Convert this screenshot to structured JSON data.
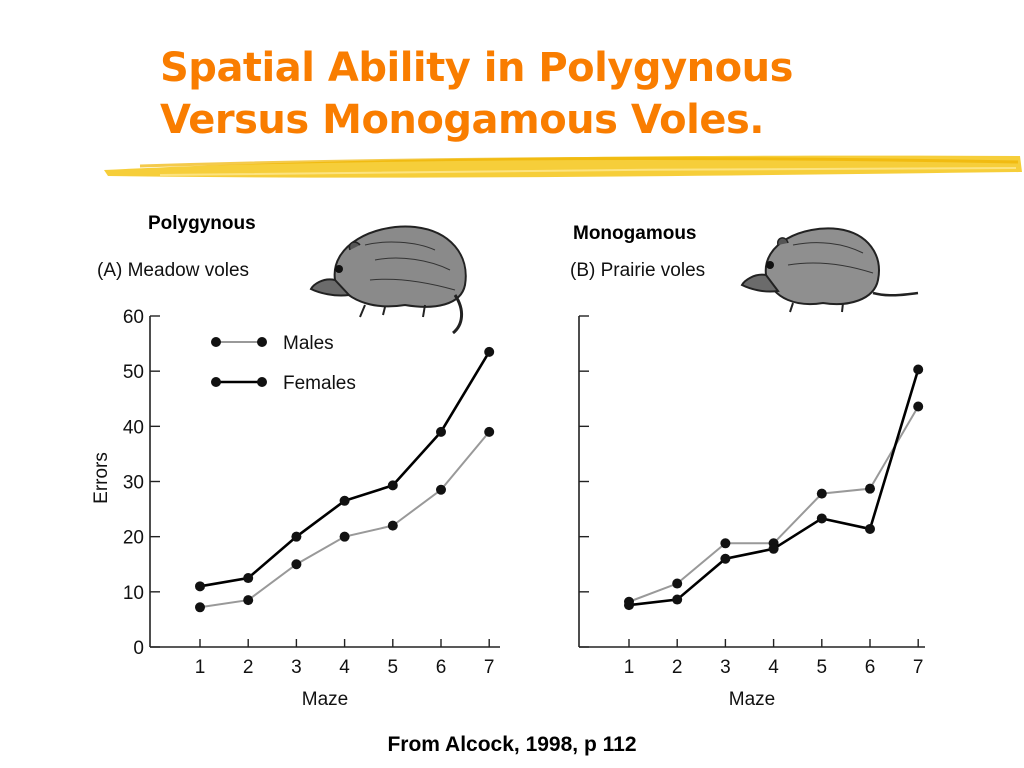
{
  "slide": {
    "title_line1": "Spatial Ability in Polygynous",
    "title_line2": "Versus Monogamous Voles.",
    "label_left": "Polygynous",
    "label_right": "Monogamous",
    "source": "From Alcock, 1998, p  112",
    "title_color": "#f97d00",
    "accent_color": "#f5c518"
  },
  "chart_data": [
    {
      "type": "line",
      "title": "(A)  Meadow voles",
      "xlabel": "Maze",
      "ylabel": "Errors",
      "x": [
        1,
        2,
        3,
        4,
        5,
        6,
        7
      ],
      "ylim": [
        0,
        60
      ],
      "yticks": [
        0,
        10,
        20,
        30,
        40,
        50,
        60
      ],
      "legend": "top-left",
      "series": [
        {
          "name": "Males",
          "color": "#999999",
          "values": [
            7.2,
            8.5,
            15,
            20,
            22,
            28.5,
            39
          ]
        },
        {
          "name": "Females",
          "color": "#000000",
          "values": [
            11,
            12.5,
            20,
            26.5,
            29.3,
            39,
            53.5
          ]
        }
      ]
    },
    {
      "type": "line",
      "title": "(B)  Prairie voles",
      "xlabel": "Maze",
      "x": [
        1,
        2,
        3,
        4,
        5,
        6,
        7
      ],
      "ylim": [
        0,
        60
      ],
      "series": [
        {
          "name": "Males",
          "color": "#999999",
          "values": [
            8.2,
            11.5,
            18.8,
            18.8,
            27.8,
            28.7,
            43.6
          ]
        },
        {
          "name": "Females",
          "color": "#000000",
          "values": [
            7.6,
            8.6,
            16,
            17.8,
            23.3,
            21.4,
            50.3
          ]
        }
      ]
    }
  ]
}
